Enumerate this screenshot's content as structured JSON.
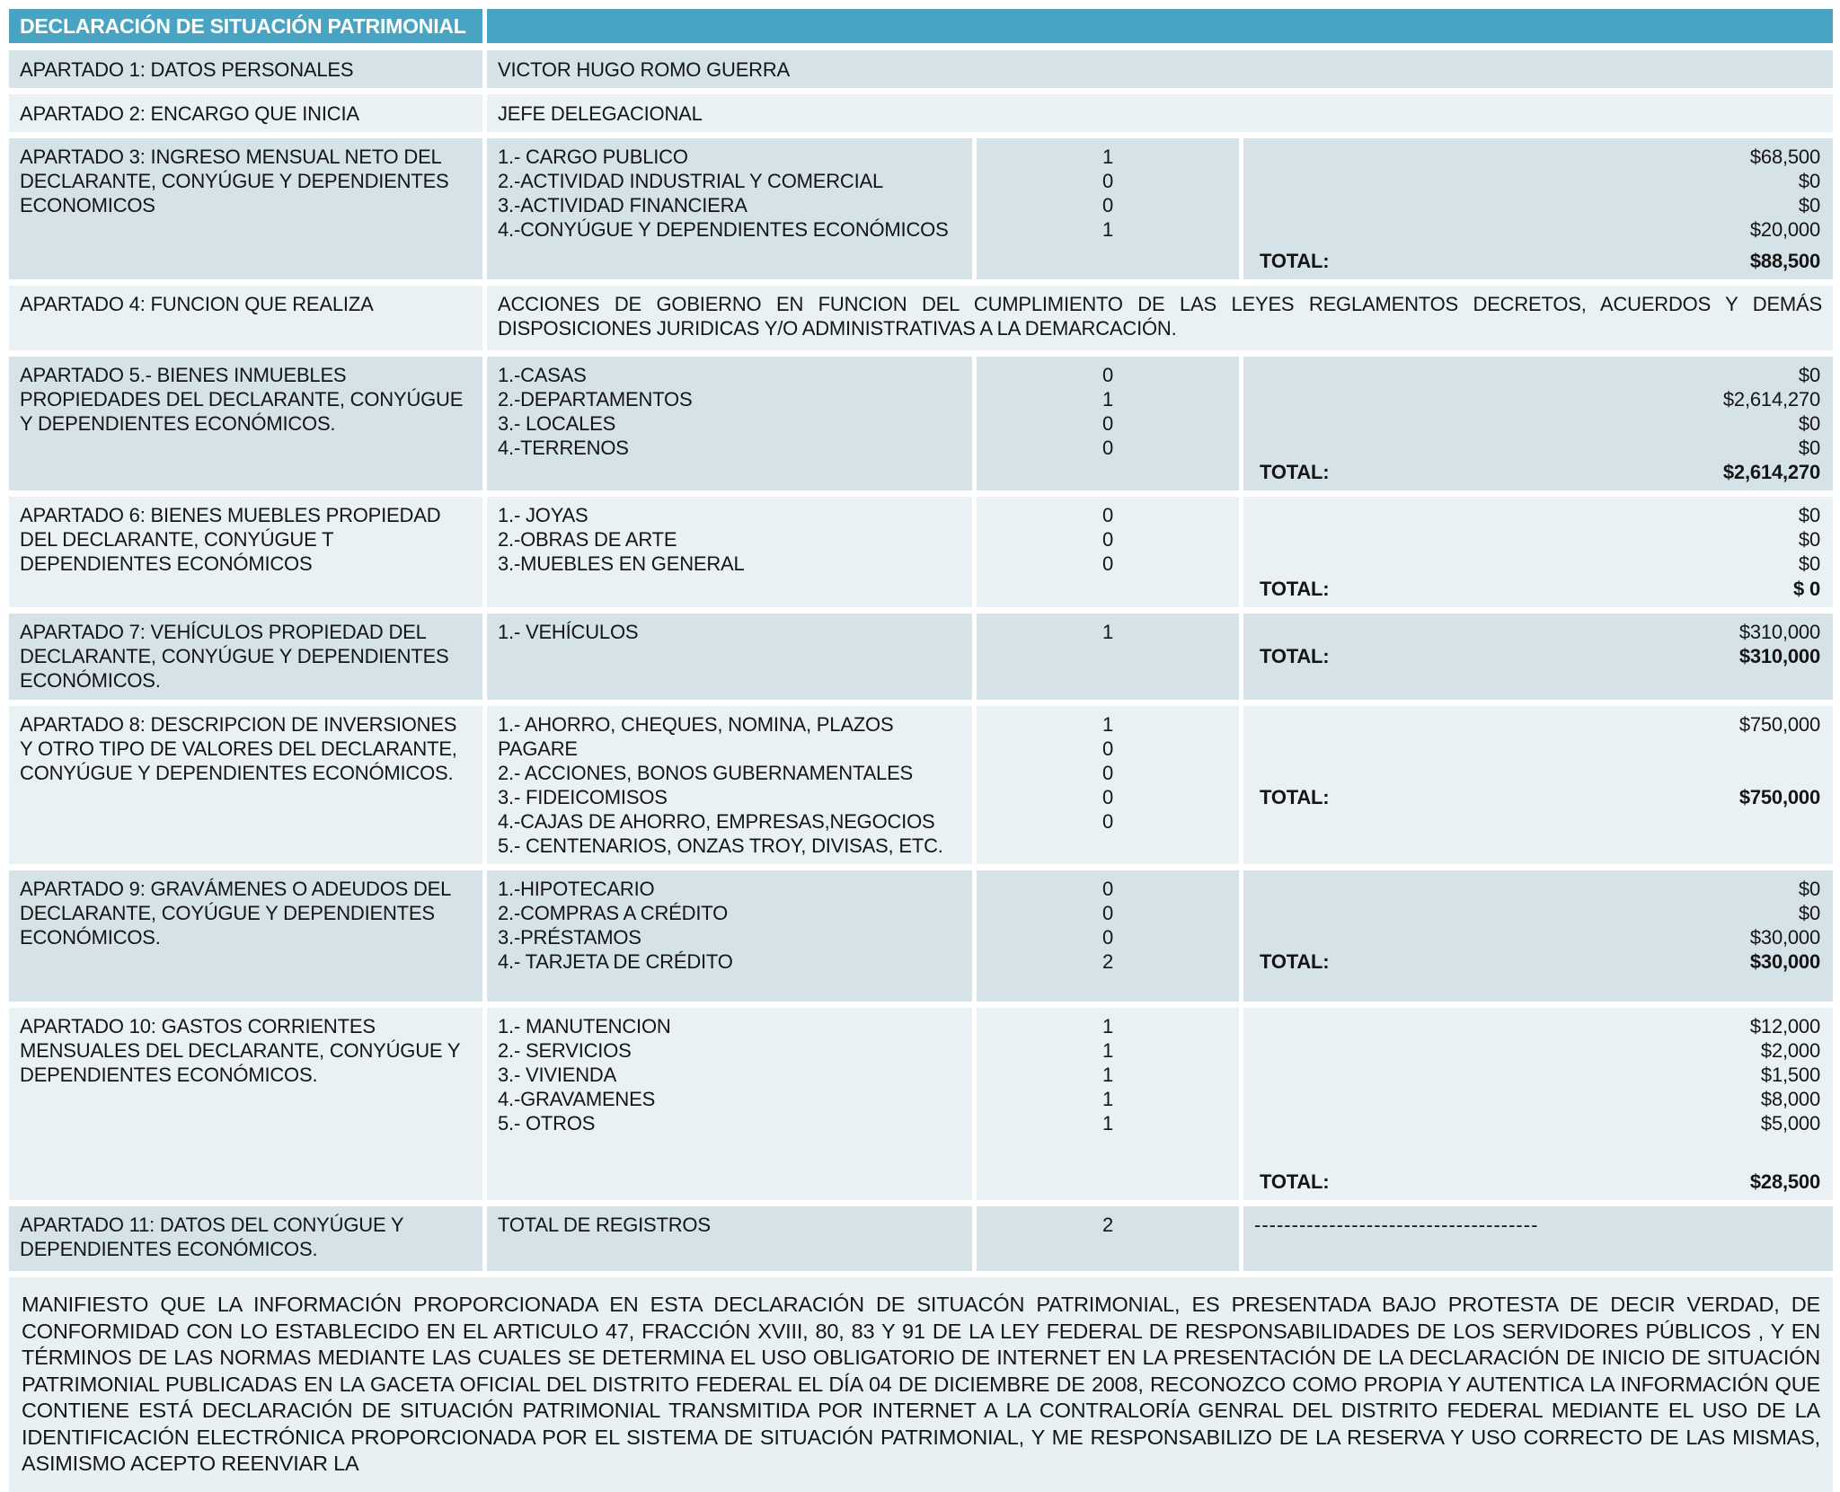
{
  "labels": {
    "total": "TOTAL:"
  },
  "colors": {
    "header_bg": "#49A4C4",
    "band_dark": "#D5E2E7",
    "band_light": "#EAF1F5",
    "footer_bg": "#E9F0F4",
    "header_text": "#FFFFFF",
    "body_text": "#151515"
  },
  "header": {
    "title": "DECLARACIÓN DE SITUACIÓN PATRIMONIAL"
  },
  "sections": [
    {
      "label": "APARTADO 1:  DATOS PERSONALES",
      "value": "VICTOR HUGO ROMO GUERRA"
    },
    {
      "label": "APARTADO 2: ENCARGO QUE INICIA",
      "value": "JEFE DELEGACIONAL"
    },
    {
      "label": "APARTADO 3: INGRESO MENSUAL NETO DEL DECLARANTE, CONYÚGUE Y DEPENDIENTES ECONOMICOS",
      "items": [
        {
          "name": "1.- CARGO PUBLICO",
          "count": "1",
          "amount": "$68,500"
        },
        {
          "name": "2.-ACTIVIDAD INDUSTRIAL Y COMERCIAL",
          "count": "0",
          "amount": "$0"
        },
        {
          "name": "3.-ACTIVIDAD FINANCIERA",
          "count": "0",
          "amount": "$0"
        },
        {
          "name": "4.-CONYÚGUE Y DEPENDIENTES ECONÓMICOS",
          "count": "1",
          "amount": "$20,000"
        }
      ],
      "total": "$88,500"
    },
    {
      "label": "APARTADO 4: FUNCION QUE REALIZA",
      "value": "ACCIONES DE GOBIERNO EN FUNCION DEL CUMPLIMIENTO DE LAS LEYES REGLAMENTOS DECRETOS, ACUERDOS Y DEMÁS DISPOSICIONES JURIDICAS Y/O ADMINISTRATIVAS A LA DEMARCACIÓN."
    },
    {
      "label": "APARTADO 5.- BIENES INMUEBLES PROPIEDADES DEL DECLARANTE, CONYÚGUE Y DEPENDIENTES ECONÓMICOS.",
      "items": [
        {
          "name": "1.-CASAS",
          "count": "0",
          "amount": "$0"
        },
        {
          "name": "2.-DEPARTAMENTOS",
          "count": "1",
          "amount": "$2,614,270"
        },
        {
          "name": "3.- LOCALES",
          "count": "0",
          "amount": "$0"
        },
        {
          "name": "4.-TERRENOS",
          "count": "0",
          "amount": "$0"
        }
      ],
      "total": "$2,614,270"
    },
    {
      "label": "APARTADO 6: BIENES MUEBLES PROPIEDAD DEL DECLARANTE, CONYÚGUE T DEPENDIENTES ECONÓMICOS",
      "items": [
        {
          "name": "1.- JOYAS",
          "count": "0",
          "amount": "$0"
        },
        {
          "name": "2.-OBRAS DE ARTE",
          "count": "0",
          "amount": "$0"
        },
        {
          "name": "3.-MUEBLES EN GENERAL",
          "count": "0",
          "amount": "$0"
        }
      ],
      "total": "$ 0"
    },
    {
      "label": "APARTADO 7: VEHÍCULOS PROPIEDAD DEL DECLARANTE, CONYÚGUE Y DEPENDIENTES ECONÓMICOS.",
      "items": [
        {
          "name": "1.- VEHÍCULOS",
          "count": "1",
          "amount": "$310,000"
        }
      ],
      "total": "$310,000"
    },
    {
      "label": "APARTADO 8: DESCRIPCION DE INVERSIONES Y OTRO TIPO DE VALORES DEL DECLARANTE, CONYÚGUE Y DEPENDIENTES ECONÓMICOS.",
      "items": [
        {
          "name": "1.- AHORRO, CHEQUES, NOMINA, PLAZOS PAGARE",
          "count": "1",
          "amount": "$750,000"
        },
        {
          "name": "2.- ACCIONES, BONOS GUBERNAMENTALES",
          "count": "0"
        },
        {
          "name": "3.- FIDEICOMISOS",
          "count": "0"
        },
        {
          "name": "4.-CAJAS DE AHORRO, EMPRESAS,NEGOCIOS",
          "count": "0"
        },
        {
          "name": "5.- CENTENARIOS, ONZAS TROY, DIVISAS, ETC.",
          "count": "0"
        }
      ],
      "total": "$750,000"
    },
    {
      "label": "APARTADO 9: GRAVÁMENES O ADEUDOS DEL DECLARANTE, COYÚGUE Y DEPENDIENTES ECONÓMICOS.",
      "items": [
        {
          "name": "1.-HIPOTECARIO",
          "count": "0",
          "amount": "$0"
        },
        {
          "name": "2.-COMPRAS A CRÉDITO",
          "count": "0",
          "amount": "$0"
        },
        {
          "name": "3.-PRÉSTAMOS",
          "count": "0",
          "amount": "$30,000"
        },
        {
          "name": "4.- TARJETA DE CRÉDITO",
          "count": "2"
        }
      ],
      "total": "$30,000"
    },
    {
      "label": "APARTADO 10: GASTOS CORRIENTES MENSUALES DEL DECLARANTE, CONYÚGUE Y DEPENDIENTES ECONÓMICOS.",
      "items": [
        {
          "name": "1.- MANUTENCION",
          "count": "1",
          "amount": "$12,000"
        },
        {
          "name": "2.- SERVICIOS",
          "count": "1",
          "amount": "$2,000"
        },
        {
          "name": "3.- VIVIENDA",
          "count": "1",
          "amount": "$1,500"
        },
        {
          "name": "4.-GRAVAMENES",
          "count": "1",
          "amount": "$8,000"
        },
        {
          "name": "5.- OTROS",
          "count": "1",
          "amount": "$5,000"
        }
      ],
      "total": "$28,500"
    },
    {
      "label": "APARTADO 11: DATOS DEL CONYÚGUE Y DEPENDIENTES ECONÓMICOS.",
      "value": "TOTAL DE REGISTROS",
      "count": "2",
      "dashes": "--------------------------------------"
    }
  ],
  "footer": {
    "text": "MANIFIESTO QUE LA INFORMACIÓN PROPORCIONADA EN ESTA DECLARACIÓN DE SITUACÓN PATRIMONIAL, ES PRESENTADA BAJO PROTESTA DE DECIR VERDAD, DE CONFORMIDAD CON LO ESTABLECIDO EN EL ARTICULO 47, FRACCIÓN XVIII, 80, 83 Y 91 DE LA LEY FEDERAL DE RESPONSABILIDADES DE LOS SERVIDORES PÚBLICOS , Y EN TÉRMINOS DE LAS NORMAS MEDIANTE LAS CUALES SE DETERMINA EL USO OBLIGATORIO DE INTERNET EN LA PRESENTACIÓN DE LA DECLARACIÓN DE INICIO DE SITUACIÓN PATRIMONIAL PUBLICADAS EN LA GACETA OFICIAL DEL DISTRITO FEDERAL EL DÍA 04 DE DICIEMBRE DE 2008, RECONOZCO COMO PROPIA Y AUTENTICA LA INFORMACIÓN QUE CONTIENE ESTÁ DECLARACIÓN DE SITUACIÓN PATRIMONIAL TRANSMITIDA POR INTERNET A LA CONTRALORÍA GENRAL DEL DISTRITO FEDERAL MEDIANTE EL USO DE LA IDENTIFICACIÓN ELECTRÓNICA PROPORCIONADA POR EL SISTEMA DE SITUACIÓN PATRIMONIAL, Y ME RESPONSABILIZO DE LA RESERVA Y USO CORRECTO DE LAS MISMAS, ASIMISMO ACEPTO REENVIAR LA"
  }
}
